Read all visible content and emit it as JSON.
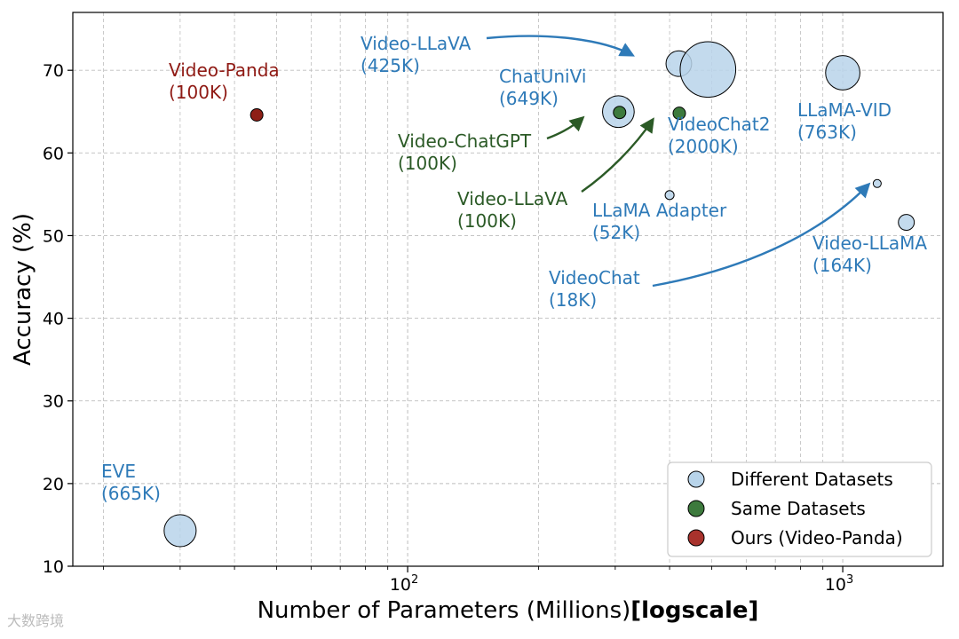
{
  "chart_data": {
    "type": "scatter",
    "title": "",
    "xlabel": "Number of Parameters (Millions)",
    "xlabel_suffix": "[logscale]",
    "ylabel": "Accuracy (%)",
    "xscale": "log",
    "xlim": [
      17,
      1700
    ],
    "ylim": [
      10,
      77
    ],
    "yticks": [
      10,
      20,
      30,
      40,
      50,
      60,
      70
    ],
    "xtick_labels": [
      {
        "value": 100,
        "base": "10",
        "exp": "2"
      },
      {
        "value": 1000,
        "base": "10",
        "exp": "3"
      }
    ],
    "grid": true,
    "legend": {
      "position": "lower right",
      "entries": [
        {
          "label": "Different Datasets",
          "color": "#b8d4ea"
        },
        {
          "label": "Same Datasets",
          "color": "#3d7a3d"
        },
        {
          "label": "Ours (Video-Panda)",
          "color": "#a8322c"
        }
      ]
    },
    "series": [
      {
        "name": "Different Datasets",
        "color": "#b8d4ea",
        "points": [
          {
            "label": "EVE",
            "data_size": "(665K)",
            "x": 30,
            "y": 14.3,
            "size_k": 665
          },
          {
            "label": "Video-LLaVA",
            "data_size": "(425K)",
            "x": 420,
            "y": 70.8,
            "size_k": 425
          },
          {
            "label": "",
            "data_size": "",
            "x": 490,
            "y": 70.1,
            "size_k": 2000
          },
          {
            "label": "ChatUniVi",
            "data_size": "(649K)",
            "x": 305,
            "y": 65.0,
            "size_k": 649
          },
          {
            "label": "LLaMA-VID",
            "data_size": "(763K)",
            "x": 1000,
            "y": 69.7,
            "size_k": 763
          },
          {
            "label": "LLaMA Adapter",
            "data_size": "(52K)",
            "x": 400,
            "y": 54.9,
            "size_k": 52
          },
          {
            "label": "Video-LLaMA",
            "data_size": "(164K)",
            "x": 1400,
            "y": 51.6,
            "size_k": 164
          },
          {
            "label": "VideoChat",
            "data_size": "(18K)",
            "x": 1200,
            "y": 56.3,
            "size_k": 18
          }
        ]
      },
      {
        "name": "Same Datasets",
        "color": "#3d7a3d",
        "points": [
          {
            "label": "Video-ChatGPT",
            "data_size": "(100K)",
            "x": 307,
            "y": 64.9,
            "size_k": 100
          },
          {
            "label": "Video-LLaVA",
            "data_size": "(100K)",
            "x": 421,
            "y": 64.8,
            "size_k": 100
          }
        ]
      },
      {
        "name": "Ours (Video-Panda)",
        "color": "#a8322c",
        "points": [
          {
            "label": "Video-Panda",
            "data_size": "(100K)",
            "x": 45,
            "y": 64.6,
            "size_k": 100
          }
        ]
      }
    ],
    "extra_labels": [
      {
        "label": "VideoChat2",
        "data_size": "(2000K)"
      }
    ]
  },
  "watermark": "大数跨境",
  "colors": {
    "diff_text": "#2e7ab8",
    "same_text": "#2b5a26",
    "ours_text": "#8f1a14",
    "diff_fill": "#b8d4ea",
    "same_fill": "#3d7a3d",
    "ours_fill": "#8e1f16"
  }
}
